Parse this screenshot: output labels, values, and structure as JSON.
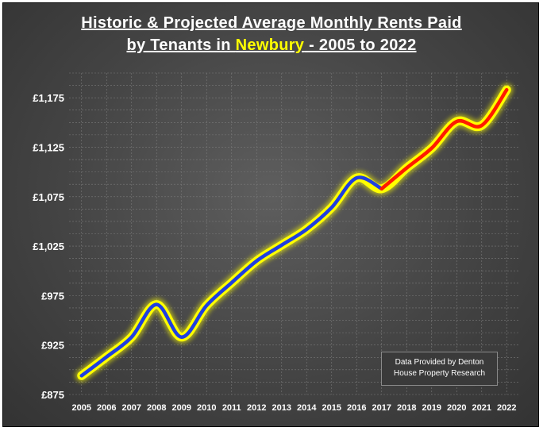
{
  "title": {
    "line1": "Historic & Projected Average Monthly Rents Paid",
    "line2_prefix": "by Tenants in ",
    "line2_highlight": "Newbury",
    "line2_suffix": " - 2005 to 2022"
  },
  "source_note": {
    "line1": "Data Provided by Denton",
    "line2": "House Property Research"
  },
  "colors": {
    "historic": "#1f3fe0",
    "projected": "#ff1a00",
    "glow": "#ffff00",
    "title_highlight": "#ffff00"
  },
  "chart_data": {
    "type": "line",
    "title": "Historic & Projected Average Monthly Rents Paid by Tenants in Newbury - 2005 to 2022",
    "x": [
      2005,
      2006,
      2007,
      2008,
      2009,
      2010,
      2011,
      2012,
      2013,
      2014,
      2015,
      2016,
      2017,
      2018,
      2019,
      2020,
      2021,
      2022
    ],
    "x_tick_labels": [
      "2005",
      "2006",
      "2007",
      "2008",
      "2009",
      "2010",
      "2011",
      "2012",
      "2013",
      "2014",
      "2015",
      "2016",
      "2017",
      "2018",
      "2019",
      "2020",
      "2021",
      "2022"
    ],
    "y_tick_labels": [
      "£875",
      "£925",
      "£975",
      "£1,025",
      "£1,075",
      "£1,125",
      "£1,175"
    ],
    "y_ticks": [
      875,
      925,
      975,
      1025,
      1075,
      1125,
      1175
    ],
    "ylim": [
      875,
      1200
    ],
    "grid": true,
    "series": [
      {
        "kind": "historic",
        "x": [
          2005,
          2006,
          2007,
          2008,
          2009,
          2010,
          2011,
          2012,
          2013,
          2014,
          2015,
          2016,
          2017
        ],
        "values": [
          894,
          913,
          933,
          966,
          933,
          965,
          988,
          1010,
          1026,
          1042,
          1064,
          1094,
          1083
        ]
      },
      {
        "kind": "projected",
        "x": [
          2017,
          2018,
          2019,
          2020,
          2021,
          2022
        ],
        "values": [
          1083,
          1104,
          1124,
          1151,
          1147,
          1183
        ]
      }
    ]
  }
}
